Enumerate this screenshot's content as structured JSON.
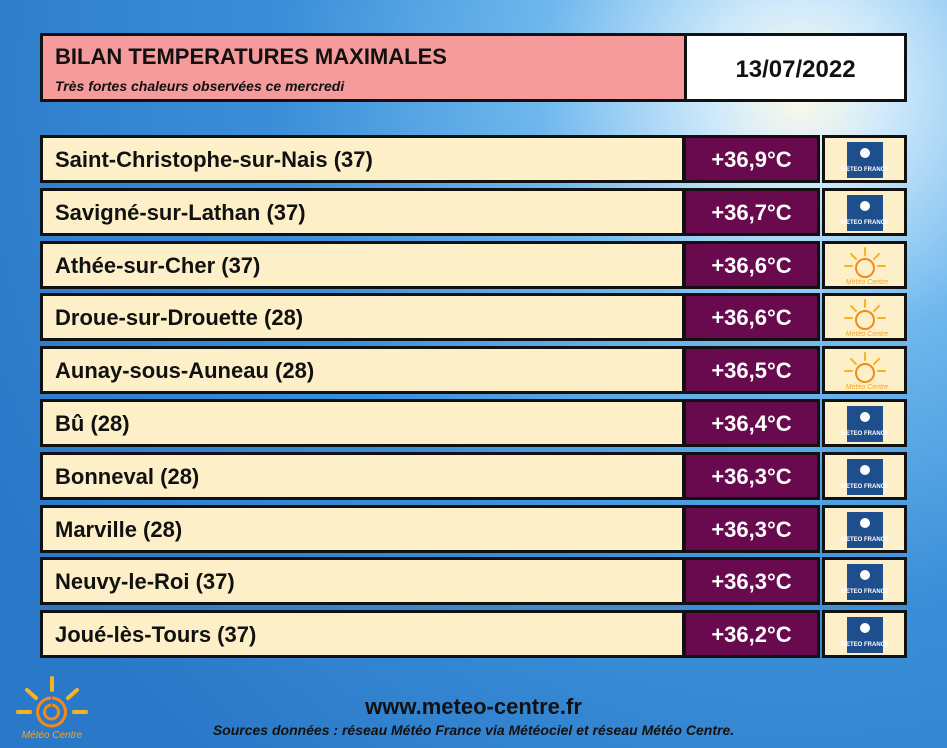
{
  "header": {
    "title": "BILAN TEMPERATURES MAXIMALES",
    "subtitle": "Très fortes chaleurs observées ce mercredi",
    "date": "13/07/2022"
  },
  "table": {
    "rows": [
      {
        "station": "Saint-Christophe-sur-Nais (37)",
        "temp": "+36,9°C",
        "source": "METEO FRANCE"
      },
      {
        "station": "Savigné-sur-Lathan (37)",
        "temp": "+36,7°C",
        "source": "METEO FRANCE"
      },
      {
        "station": "Athée-sur-Cher (37)",
        "temp": "+36,6°C",
        "source": "Météo Centre"
      },
      {
        "station": "Droue-sur-Drouette (28)",
        "temp": "+36,6°C",
        "source": "Météo Centre"
      },
      {
        "station": "Aunay-sous-Auneau (28)",
        "temp": "+36,5°C",
        "source": "Météo Centre"
      },
      {
        "station": "Bû (28)",
        "temp": "+36,4°C",
        "source": "METEO FRANCE"
      },
      {
        "station": "Bonneval (28)",
        "temp": "+36,3°C",
        "source": "METEO FRANCE"
      },
      {
        "station": "Marville (28)",
        "temp": "+36,3°C",
        "source": "METEO FRANCE"
      },
      {
        "station": "Neuvy-le-Roi (37)",
        "temp": "+36,3°C",
        "source": "METEO FRANCE"
      },
      {
        "station": "Joué-lès-Tours (37)",
        "temp": "+36,2°C",
        "source": "METEO FRANCE"
      }
    ]
  },
  "footer": {
    "logo": "Météo Centre",
    "website": "www.meteo-centre.fr",
    "sources": "Sources données : réseau Météo France via Météociel et réseau Météo Centre."
  }
}
